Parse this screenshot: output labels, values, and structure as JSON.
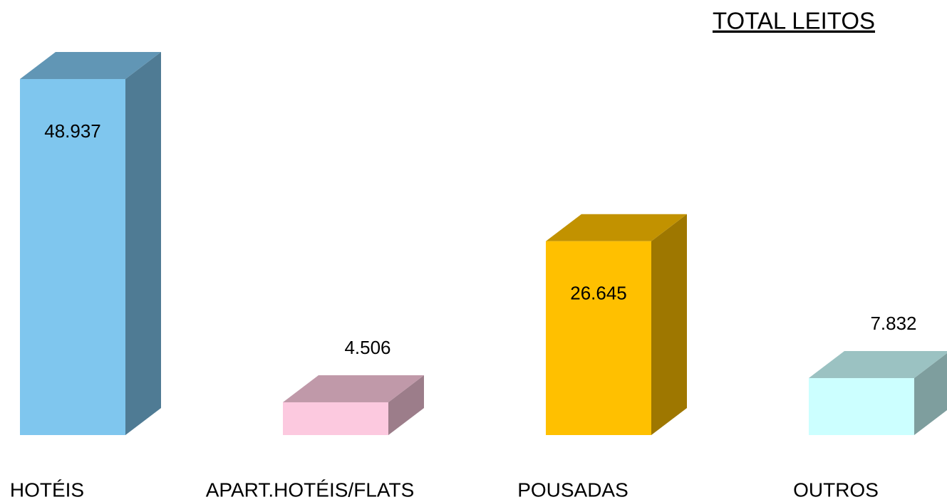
{
  "chart_data": {
    "type": "bar3d",
    "title": "TOTAL LEITOS",
    "categories": [
      "HOTÉIS",
      "APART.HOTÉIS/FLATS",
      "POUSADAS",
      "OUTROS"
    ],
    "values": [
      48937,
      4506,
      26645,
      7832
    ],
    "value_labels": [
      "48.937",
      "4.506",
      "26.645",
      "7.832"
    ],
    "colors": [
      "#7fc6ee",
      "#fcc9df",
      "#ffc000",
      "#ccffff"
    ]
  }
}
